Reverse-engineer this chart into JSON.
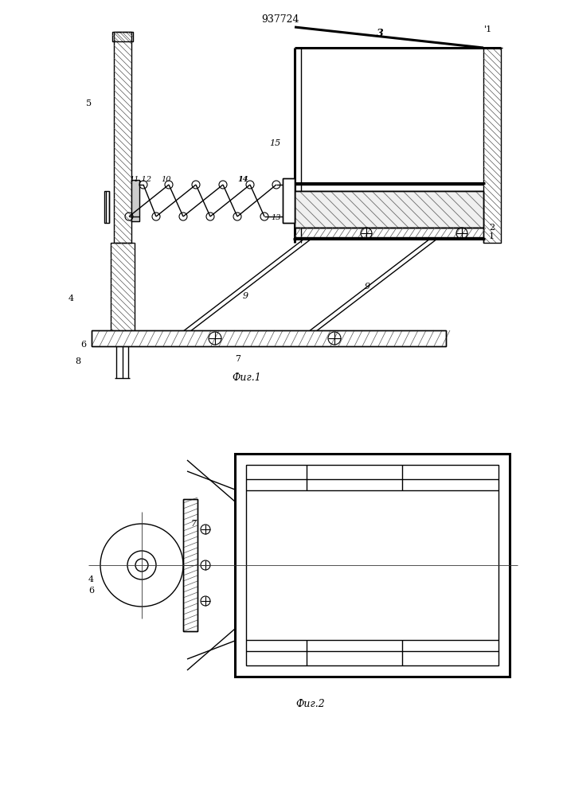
{
  "title": "937724",
  "fig1_caption": "Фиг.1",
  "fig2_caption": "Фиг.2",
  "bg_color": "#ffffff",
  "line_color": "#000000",
  "lw": 1.0,
  "lw_thick": 2.2,
  "lw_thin": 0.55
}
